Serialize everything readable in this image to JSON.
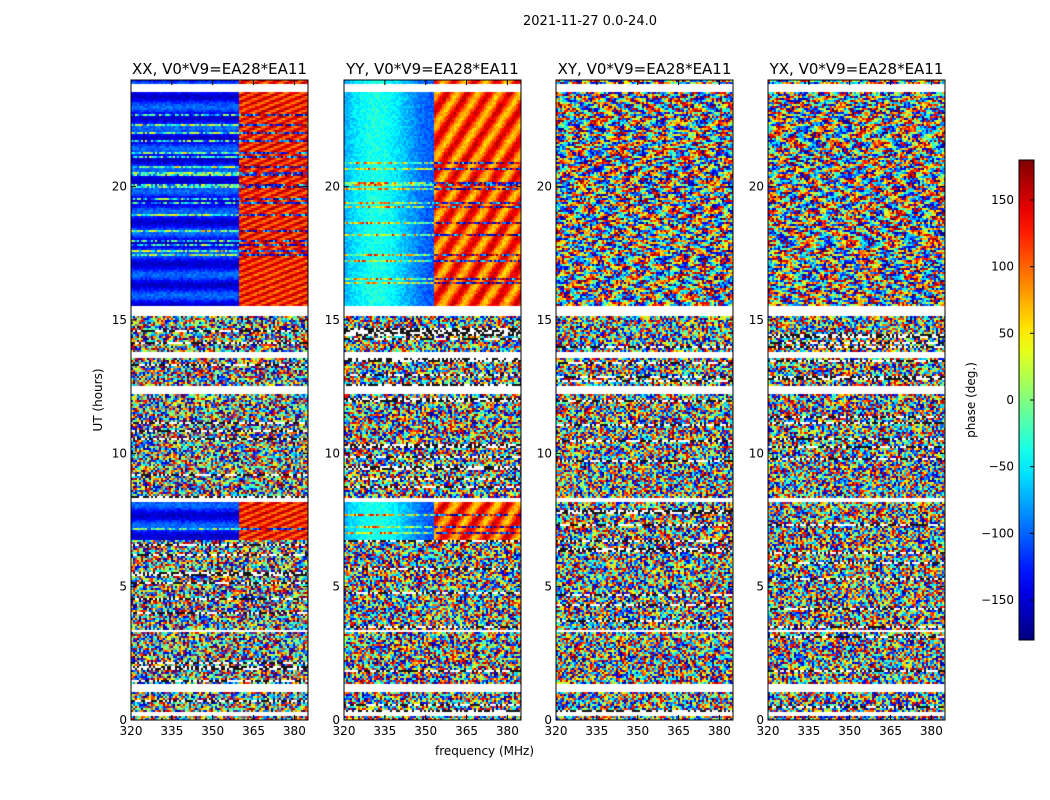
{
  "figure": {
    "suptitle": "2021-11-27 0.0-24.0",
    "xlabel": "frequency (MHz)",
    "ylabel": "UT (hours)",
    "colorbar_label": "phase (deg.)",
    "colorbar_ticks": [
      -150,
      -100,
      -50,
      0,
      50,
      100,
      150
    ],
    "colorbar_range": [
      -180,
      180
    ],
    "colormap": "jet",
    "colors": [
      "#00007f",
      "#0000ff",
      "#00ffff",
      "#ffff00",
      "#ff0000",
      "#7f0000"
    ]
  },
  "chart_data": [
    {
      "type": "heatmap",
      "title": "XX, V0*V9=EA28*EA11",
      "xlabel": "",
      "ylabel": "UT (hours)",
      "xlim": [
        320,
        385
      ],
      "ylim": [
        0,
        24
      ],
      "xticks": [
        320,
        335,
        350,
        365,
        380
      ],
      "yticks": [
        0,
        5,
        10,
        15,
        20
      ],
      "value_units": "phase (deg.)",
      "coherent_periods": [
        [
          15.6,
          24.0
        ],
        [
          6.8,
          8.2
        ]
      ],
      "phase_trend": "blue (~-150) at low frequency wrapping to red (~+150) above ~360 MHz"
    },
    {
      "type": "heatmap",
      "title": "YY, V0*V9=EA28*EA11",
      "xlabel": "frequency (MHz)",
      "ylabel": "",
      "xlim": [
        320,
        385
      ],
      "ylim": [
        0,
        24
      ],
      "xticks": [
        320,
        335,
        350,
        365,
        380
      ],
      "yticks": [
        0,
        5,
        10,
        15,
        20
      ],
      "value_units": "phase (deg.)",
      "coherent_periods": [
        [
          15.6,
          24.0
        ],
        [
          6.8,
          8.2
        ]
      ],
      "phase_trend": "cyan/blue at low frequency wrapping to red/yellow above ~355 MHz"
    },
    {
      "type": "heatmap",
      "title": "XY, V0*V9=EA28*EA11",
      "xlabel": "",
      "ylabel": "",
      "xlim": [
        320,
        385
      ],
      "ylim": [
        0,
        24
      ],
      "xticks": [
        320,
        335,
        350,
        365,
        380
      ],
      "yticks": [
        0,
        5,
        10,
        15,
        20
      ],
      "value_units": "phase (deg.)",
      "coherent_periods": [
        [
          15.6,
          24.0
        ]
      ],
      "phase_trend": "banded structure, mostly noisy"
    },
    {
      "type": "heatmap",
      "title": "YX, V0*V9=EA28*EA11",
      "xlabel": "",
      "ylabel": "",
      "xlim": [
        320,
        385
      ],
      "ylim": [
        0,
        24
      ],
      "xticks": [
        320,
        335,
        350,
        365,
        380
      ],
      "yticks": [
        0,
        5,
        10,
        15,
        20
      ],
      "value_units": "phase (deg.)",
      "coherent_periods": [
        [
          15.6,
          24.0
        ]
      ],
      "phase_trend": "banded structure, mostly noisy"
    }
  ]
}
